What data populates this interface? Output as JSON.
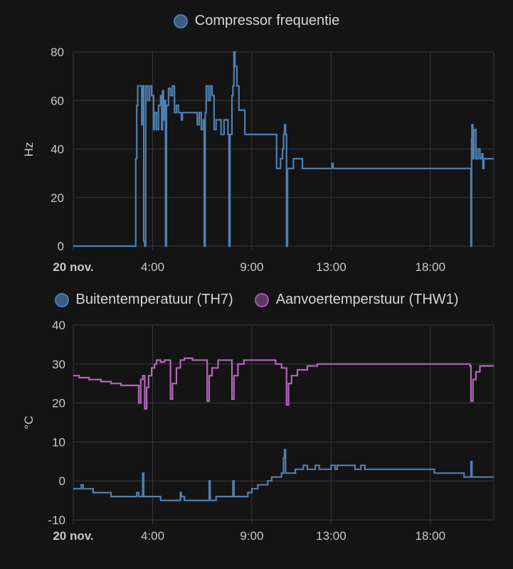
{
  "chart_data": [
    {
      "type": "line",
      "x_ticks": [
        "20 nov.",
        "4:00",
        "9:00",
        "13:00",
        "18:00"
      ],
      "xlim": [
        0,
        21.2
      ],
      "ylabel": "Hz",
      "ylim": [
        0,
        80
      ],
      "y_ticks": [
        0,
        20,
        40,
        60,
        80
      ],
      "grid": true,
      "legend_position": "top-center",
      "series": [
        {
          "name": "Compressor frequentie",
          "color": "#4f7fb0",
          "points": [
            [
              0,
              0
            ],
            [
              3.1,
              0
            ],
            [
              3.15,
              36
            ],
            [
              3.2,
              58
            ],
            [
              3.25,
              66
            ],
            [
              3.4,
              66
            ],
            [
              3.45,
              50
            ],
            [
              3.5,
              66
            ],
            [
              3.55,
              2
            ],
            [
              3.6,
              0
            ],
            [
              3.65,
              66
            ],
            [
              3.75,
              60
            ],
            [
              3.85,
              66
            ],
            [
              3.95,
              62
            ],
            [
              4.05,
              48
            ],
            [
              4.1,
              55
            ],
            [
              4.2,
              48
            ],
            [
              4.3,
              58
            ],
            [
              4.4,
              62
            ],
            [
              4.45,
              48
            ],
            [
              4.5,
              64
            ],
            [
              4.55,
              52
            ],
            [
              4.6,
              60
            ],
            [
              4.65,
              0
            ],
            [
              4.7,
              58
            ],
            [
              4.8,
              65
            ],
            [
              4.9,
              62
            ],
            [
              5.0,
              66
            ],
            [
              5.1,
              55
            ],
            [
              5.2,
              58
            ],
            [
              5.3,
              55
            ],
            [
              5.45,
              52
            ],
            [
              5.5,
              55
            ],
            [
              6.1,
              55
            ],
            [
              6.25,
              50
            ],
            [
              6.35,
              55
            ],
            [
              6.45,
              48
            ],
            [
              6.55,
              52
            ],
            [
              6.6,
              0
            ],
            [
              6.65,
              55
            ],
            [
              6.7,
              66
            ],
            [
              6.8,
              60
            ],
            [
              6.9,
              66
            ],
            [
              7.0,
              62
            ],
            [
              7.1,
              48
            ],
            [
              7.2,
              52
            ],
            [
              7.4,
              52
            ],
            [
              7.45,
              46
            ],
            [
              7.6,
              52
            ],
            [
              7.8,
              46
            ],
            [
              7.85,
              0
            ],
            [
              7.9,
              46
            ],
            [
              8.0,
              62
            ],
            [
              8.05,
              66
            ],
            [
              8.1,
              80
            ],
            [
              8.15,
              74
            ],
            [
              8.25,
              66
            ],
            [
              8.35,
              56
            ],
            [
              8.45,
              56
            ],
            [
              8.6,
              56
            ],
            [
              8.65,
              46
            ],
            [
              9.5,
              46
            ],
            [
              9.55,
              46
            ],
            [
              10.2,
              46
            ],
            [
              10.25,
              32
            ],
            [
              10.4,
              32
            ],
            [
              10.45,
              36
            ],
            [
              10.55,
              40
            ],
            [
              10.6,
              46
            ],
            [
              10.65,
              50
            ],
            [
              10.7,
              46
            ],
            [
              10.75,
              0
            ],
            [
              10.8,
              32
            ],
            [
              11.0,
              32
            ],
            [
              11.1,
              36
            ],
            [
              11.5,
              36
            ],
            [
              11.55,
              32
            ],
            [
              13.0,
              32
            ],
            [
              13.05,
              34
            ],
            [
              13.1,
              32
            ],
            [
              20.0,
              32
            ],
            [
              20.05,
              0
            ],
            [
              20.08,
              44
            ],
            [
              20.1,
              50
            ],
            [
              20.15,
              36
            ],
            [
              20.2,
              48
            ],
            [
              20.3,
              36
            ],
            [
              20.4,
              40
            ],
            [
              20.5,
              36
            ],
            [
              20.6,
              38
            ],
            [
              20.65,
              32
            ],
            [
              20.7,
              36
            ],
            [
              21.2,
              36
            ]
          ]
        }
      ]
    },
    {
      "type": "line",
      "x_ticks": [
        "20 nov.",
        "4:00",
        "9:00",
        "13:00",
        "18:00"
      ],
      "xlim": [
        0,
        21.2
      ],
      "ylabel": "°C",
      "ylim": [
        -10,
        40
      ],
      "y_ticks": [
        -10,
        0,
        10,
        20,
        30,
        40
      ],
      "grid": true,
      "legend_position": "top-center",
      "series": [
        {
          "name": "Buitentemperatuur (TH7)",
          "color": "#4f7fb0",
          "points": [
            [
              0,
              -2
            ],
            [
              0.3,
              -2
            ],
            [
              0.4,
              -1
            ],
            [
              0.5,
              -2
            ],
            [
              0.9,
              -2
            ],
            [
              1.0,
              -3
            ],
            [
              1.8,
              -3
            ],
            [
              1.9,
              -4
            ],
            [
              2.9,
              -4
            ],
            [
              3.1,
              -4
            ],
            [
              3.2,
              -3
            ],
            [
              3.3,
              -4
            ],
            [
              3.4,
              -4
            ],
            [
              3.5,
              2
            ],
            [
              3.55,
              -4
            ],
            [
              4.3,
              -4
            ],
            [
              4.4,
              -5
            ],
            [
              5.3,
              -5
            ],
            [
              5.4,
              -3
            ],
            [
              5.45,
              -4
            ],
            [
              5.6,
              -5
            ],
            [
              6.8,
              -5
            ],
            [
              6.85,
              0
            ],
            [
              6.9,
              -5
            ],
            [
              7.2,
              -4
            ],
            [
              8.0,
              -4
            ],
            [
              8.05,
              0
            ],
            [
              8.1,
              -4
            ],
            [
              8.5,
              -4
            ],
            [
              8.8,
              -3
            ],
            [
              9.0,
              -2
            ],
            [
              9.3,
              -1
            ],
            [
              9.6,
              -1
            ],
            [
              9.8,
              0
            ],
            [
              10.0,
              1
            ],
            [
              10.3,
              1
            ],
            [
              10.5,
              2
            ],
            [
              10.6,
              6
            ],
            [
              10.65,
              8
            ],
            [
              10.7,
              2
            ],
            [
              11.0,
              2
            ],
            [
              11.2,
              3
            ],
            [
              11.5,
              3
            ],
            [
              11.6,
              4
            ],
            [
              11.8,
              3
            ],
            [
              12.0,
              3
            ],
            [
              12.2,
              4
            ],
            [
              12.4,
              3
            ],
            [
              12.9,
              3
            ],
            [
              13.0,
              4
            ],
            [
              13.2,
              3
            ],
            [
              13.3,
              4
            ],
            [
              14.0,
              4
            ],
            [
              14.2,
              3
            ],
            [
              14.5,
              4
            ],
            [
              14.7,
              3
            ],
            [
              18.0,
              3
            ],
            [
              18.2,
              2
            ],
            [
              19.6,
              2
            ],
            [
              19.7,
              1
            ],
            [
              20.0,
              1
            ],
            [
              20.05,
              5
            ],
            [
              20.1,
              1
            ],
            [
              21.2,
              1
            ]
          ]
        },
        {
          "name": "Aanvoertemperstuur (THW1)",
          "color": "#b267b9",
          "points": [
            [
              0,
              27
            ],
            [
              0.3,
              26.5
            ],
            [
              0.8,
              26
            ],
            [
              1.4,
              25.5
            ],
            [
              1.9,
              25
            ],
            [
              2.4,
              24.5
            ],
            [
              3.2,
              24.5
            ],
            [
              3.3,
              20
            ],
            [
              3.4,
              26
            ],
            [
              3.5,
              27
            ],
            [
              3.6,
              18.5
            ],
            [
              3.7,
              24
            ],
            [
              3.8,
              27
            ],
            [
              3.95,
              29
            ],
            [
              4.1,
              30
            ],
            [
              4.2,
              31
            ],
            [
              4.4,
              30.5
            ],
            [
              4.6,
              31
            ],
            [
              4.8,
              31
            ],
            [
              4.9,
              21
            ],
            [
              5.0,
              25
            ],
            [
              5.2,
              29
            ],
            [
              5.4,
              31
            ],
            [
              5.6,
              31.5
            ],
            [
              6.0,
              31
            ],
            [
              6.5,
              31
            ],
            [
              6.6,
              31
            ],
            [
              6.75,
              20.5
            ],
            [
              6.85,
              27
            ],
            [
              7.0,
              29
            ],
            [
              7.3,
              31
            ],
            [
              7.6,
              31
            ],
            [
              7.9,
              31
            ],
            [
              8.0,
              21
            ],
            [
              8.1,
              27
            ],
            [
              8.3,
              30
            ],
            [
              8.6,
              31
            ],
            [
              9.2,
              31
            ],
            [
              9.5,
              31
            ],
            [
              9.8,
              31
            ],
            [
              10.2,
              30
            ],
            [
              10.5,
              29
            ],
            [
              10.6,
              29
            ],
            [
              10.75,
              19.5
            ],
            [
              10.85,
              25
            ],
            [
              11.0,
              27
            ],
            [
              11.3,
              28.5
            ],
            [
              11.8,
              29.5
            ],
            [
              12.3,
              30
            ],
            [
              16.0,
              30
            ],
            [
              18.0,
              30
            ],
            [
              19.5,
              30
            ],
            [
              20.0,
              29.5
            ],
            [
              20.05,
              20.5
            ],
            [
              20.15,
              26
            ],
            [
              20.3,
              28
            ],
            [
              20.5,
              29.5
            ],
            [
              21.2,
              29.5
            ]
          ]
        }
      ]
    }
  ]
}
